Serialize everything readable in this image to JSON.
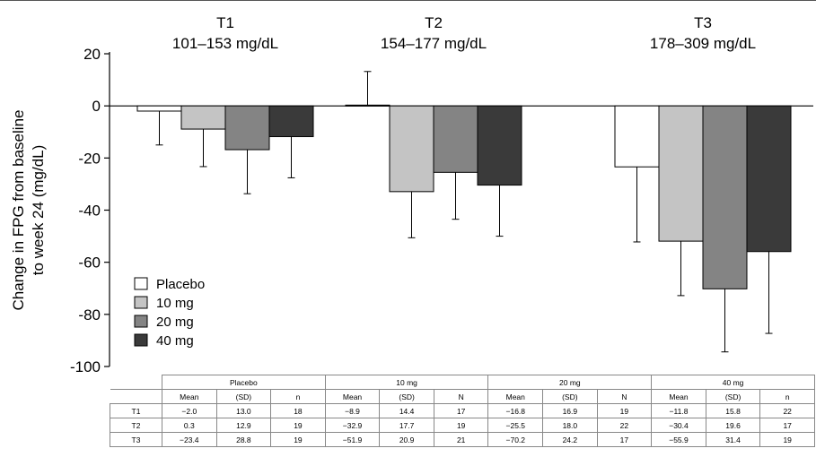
{
  "chart_data": {
    "type": "bar",
    "groups": [
      {
        "title": "T1",
        "subtitle": "101–153 mg/dL"
      },
      {
        "title": "T2",
        "subtitle": "154–177 mg/dL"
      },
      {
        "title": "T3",
        "subtitle": "178–309 mg/dL"
      }
    ],
    "categories": [
      "T1",
      "T2",
      "T3"
    ],
    "series": [
      {
        "name": "Placebo",
        "color": "#ffffff",
        "values": [
          -2.0,
          0.3,
          -23.4
        ],
        "sd": [
          13.0,
          12.9,
          28.8
        ]
      },
      {
        "name": "10 mg",
        "color": "#c4c4c4",
        "values": [
          -8.9,
          -32.9,
          -51.9
        ],
        "sd": [
          14.4,
          17.7,
          20.9
        ]
      },
      {
        "name": "20 mg",
        "color": "#848484",
        "values": [
          -16.8,
          -25.5,
          -70.2
        ],
        "sd": [
          16.9,
          18.0,
          24.2
        ]
      },
      {
        "name": "40 mg",
        "color": "#3a3a3a",
        "values": [
          -11.8,
          -30.4,
          -55.9
        ],
        "sd": [
          15.8,
          19.6,
          31.4
        ]
      }
    ],
    "ylabel": "Change in FPG from baseline\nto week 24 (mg/dL)",
    "ylim": [
      -100,
      20
    ],
    "yticks": [
      20,
      0,
      -20,
      -40,
      -60,
      -80,
      -100
    ],
    "ytick_labels": [
      "20",
      "0",
      "-20",
      "-40",
      "-60",
      "-80",
      "-100"
    ],
    "legend_position": "bottom-left",
    "grid": false
  },
  "table": {
    "group_headers": [
      "Placebo",
      "10 mg",
      "20 mg",
      "40 mg"
    ],
    "sub_headers": [
      [
        "Mean",
        "(SD)",
        "n"
      ],
      [
        "Mean",
        "(SD)",
        "N"
      ],
      [
        "Mean",
        "(SD)",
        "N"
      ],
      [
        "Mean",
        "(SD)",
        "n"
      ]
    ],
    "rows": [
      {
        "label": "T1",
        "cells": [
          "−2.0",
          "13.0",
          "18",
          "−8.9",
          "14.4",
          "17",
          "−16.8",
          "16.9",
          "19",
          "−11.8",
          "15.8",
          "22"
        ]
      },
      {
        "label": "T2",
        "cells": [
          "0.3",
          "12.9",
          "19",
          "−32.9",
          "17.7",
          "19",
          "−25.5",
          "18.0",
          "22",
          "−30.4",
          "19.6",
          "17"
        ]
      },
      {
        "label": "T3",
        "cells": [
          "−23.4",
          "28.8",
          "19",
          "−51.9",
          "20.9",
          "21",
          "−70.2",
          "24.2",
          "17",
          "−55.9",
          "31.4",
          "19"
        ]
      }
    ]
  }
}
